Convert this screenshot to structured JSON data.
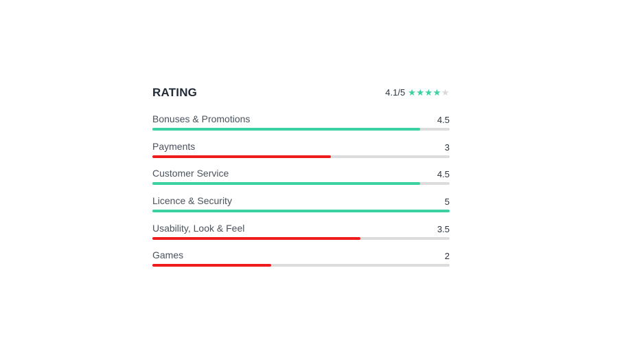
{
  "rating": {
    "title": "RATING",
    "overall_score": "4.1/5",
    "overall_value": 4.1,
    "overall_max": 5,
    "star_icons": "★★★★★",
    "colors": {
      "good": "#3bd1a3",
      "bad": "#ee1c1c",
      "track": "#dcdcdc"
    },
    "categories": [
      {
        "label": "Bonuses & Promotions",
        "value_text": "4.5",
        "value": 4.5,
        "max": 5
      },
      {
        "label": "Payments",
        "value_text": "3",
        "value": 3,
        "max": 5
      },
      {
        "label": "Customer Service",
        "value_text": "4.5",
        "value": 4.5,
        "max": 5
      },
      {
        "label": "Licence & Security",
        "value_text": "5",
        "value": 5,
        "max": 5
      },
      {
        "label": "Usability, Look & Feel",
        "value_text": "3.5",
        "value": 3.5,
        "max": 5
      },
      {
        "label": "Games",
        "value_text": "2",
        "value": 2,
        "max": 5
      }
    ]
  }
}
